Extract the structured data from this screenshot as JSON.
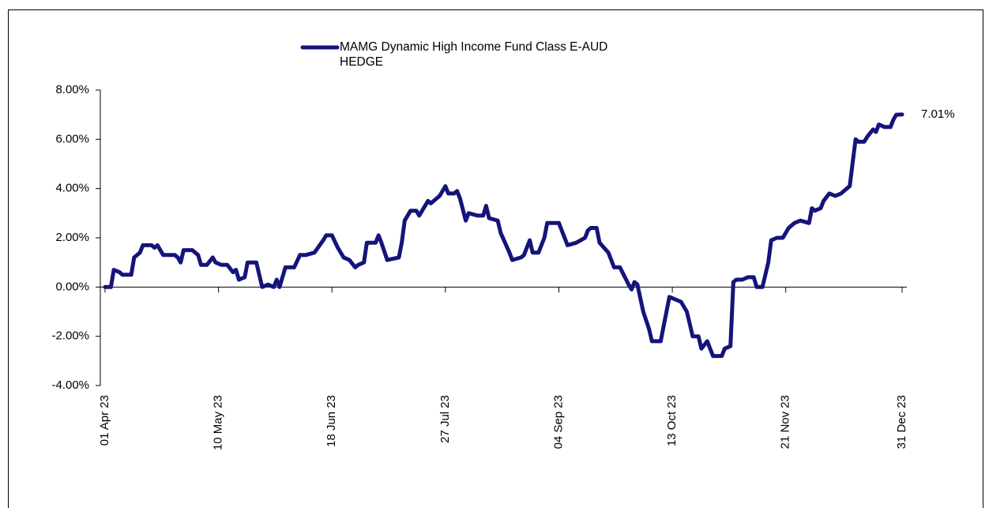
{
  "chart_data": {
    "type": "line",
    "x": [
      "01 Apr 23",
      "03 Apr 23",
      "04 Apr 23",
      "06 Apr 23",
      "07 Apr 23",
      "10 Apr 23",
      "11 Apr 23",
      "13 Apr 23",
      "14 Apr 23",
      "17 Apr 23",
      "18 Apr 23",
      "19 Apr 23",
      "21 Apr 23",
      "25 Apr 23",
      "26 Apr 23",
      "27 Apr 23",
      "28 Apr 23",
      "01 May 23",
      "03 May 23",
      "04 May 23",
      "06 May 23",
      "08 May 23",
      "09 May 23",
      "11 May 23",
      "13 May 23",
      "15 May 23",
      "16 May 23",
      "17 May 23",
      "19 May 23",
      "20 May 23",
      "23 May 23",
      "25 May 23",
      "27 May 23",
      "29 May 23",
      "30 May 23",
      "31 May 23",
      "02 Jun 23",
      "05 Jun 23",
      "07 Jun 23",
      "09 Jun 23",
      "12 Jun 23",
      "15 Jun 23",
      "16 Jun 23",
      "18 Jun 23",
      "20 Jun 23",
      "22 Jun 23",
      "24 Jun 23",
      "26 Jun 23",
      "27 Jun 23",
      "29 Jun 23",
      "30 Jun 23",
      "03 Jul 23",
      "04 Jul 23",
      "05 Jul 23",
      "07 Jul 23",
      "11 Jul 23",
      "12 Jul 23",
      "13 Jul 23",
      "15 Jul 23",
      "17 Jul 23",
      "18 Jul 23",
      "19 Jul 23",
      "21 Jul 23",
      "22 Jul 23",
      "24 Jul 23",
      "25 Jul 23",
      "27 Jul 23",
      "28 Jul 23",
      "30 Jul 23",
      "31 Jul 23",
      "01 Aug 23",
      "03 Aug 23",
      "04 Aug 23",
      "07 Aug 23",
      "09 Aug 23",
      "10 Aug 23",
      "11 Aug 23",
      "14 Aug 23",
      "15 Aug 23",
      "18 Aug 23",
      "19 Aug 23",
      "22 Aug 23",
      "23 Aug 23",
      "25 Aug 23",
      "26 Aug 23",
      "28 Aug 23",
      "30 Aug 23",
      "31 Aug 23",
      "04 Sep 23",
      "05 Sep 23",
      "07 Sep 23",
      "10 Sep 23",
      "13 Sep 23",
      "14 Sep 23",
      "15 Sep 23",
      "17 Sep 23",
      "18 Sep 23",
      "21 Sep 23",
      "23 Sep 23",
      "25 Sep 23",
      "28 Sep 23",
      "29 Sep 23",
      "30 Sep 23",
      "01 Oct 23",
      "03 Oct 23",
      "05 Oct 23",
      "06 Oct 23",
      "09 Oct 23",
      "11 Oct 23",
      "12 Oct 23",
      "14 Oct 23",
      "16 Oct 23",
      "18 Oct 23",
      "19 Oct 23",
      "20 Oct 23",
      "22 Oct 23",
      "23 Oct 23",
      "25 Oct 23",
      "26 Oct 23",
      "27 Oct 23",
      "30 Oct 23",
      "31 Oct 23",
      "02 Nov 23",
      "03 Nov 23",
      "04 Nov 23",
      "06 Nov 23",
      "08 Nov 23",
      "10 Nov 23",
      "11 Nov 23",
      "13 Nov 23",
      "15 Nov 23",
      "16 Nov 23",
      "18 Nov 23",
      "20 Nov 23",
      "22 Nov 23",
      "24 Nov 23",
      "26 Nov 23",
      "29 Nov 23",
      "30 Nov 23",
      "01 Dec 23",
      "03 Dec 23",
      "04 Dec 23",
      "06 Dec 23",
      "08 Dec 23",
      "10 Dec 23",
      "12 Dec 23",
      "13 Dec 23",
      "15 Dec 23",
      "16 Dec 23",
      "18 Dec 23",
      "19 Dec 23",
      "21 Dec 23",
      "22 Dec 23",
      "23 Dec 23",
      "25 Dec 23",
      "27 Dec 23",
      "28 Dec 23",
      "29 Dec 23",
      "31 Dec 23"
    ],
    "series": [
      {
        "name": "MAMG Dynamic High Income Fund Class E-AUD HEDGE",
        "color": "#14147a",
        "values": [
          0,
          0,
          0.7,
          0.6,
          0.5,
          0.5,
          1.2,
          1.4,
          1.7,
          1.7,
          1.6,
          1.7,
          1.3,
          1.3,
          1.2,
          1.0,
          1.5,
          1.5,
          1.3,
          0.9,
          0.9,
          1.2,
          1.0,
          0.9,
          0.9,
          0.6,
          0.7,
          0.3,
          0.4,
          1.0,
          1.0,
          0.0,
          0.1,
          0.0,
          0.3,
          0.0,
          0.8,
          0.8,
          1.3,
          1.3,
          1.4,
          1.9,
          2.1,
          2.1,
          1.6,
          1.2,
          1.1,
          0.8,
          0.9,
          1.0,
          1.8,
          1.8,
          2.1,
          1.8,
          1.1,
          1.2,
          1.8,
          2.7,
          3.1,
          3.1,
          2.9,
          3.1,
          3.5,
          3.4,
          3.6,
          3.7,
          4.1,
          3.8,
          3.8,
          3.9,
          3.6,
          2.7,
          3.0,
          2.9,
          2.9,
          3.3,
          2.8,
          2.7,
          2.2,
          1.4,
          1.1,
          1.2,
          1.3,
          1.9,
          1.4,
          1.4,
          2.0,
          2.6,
          2.6,
          2.3,
          1.7,
          1.8,
          2.0,
          2.3,
          2.4,
          2.4,
          1.8,
          1.4,
          0.8,
          0.8,
          0.1,
          -0.1,
          0.2,
          0.1,
          -1.0,
          -1.7,
          -2.2,
          -2.2,
          -1.0,
          -0.4,
          -0.5,
          -0.6,
          -1.0,
          -1.5,
          -2.0,
          -2.0,
          -2.5,
          -2.2,
          -2.5,
          -2.8,
          -2.8,
          -2.5,
          -2.4,
          0.2,
          0.3,
          0.3,
          0.4,
          0.4,
          0.0,
          0.0,
          1.0,
          1.9,
          2.0,
          2.0,
          2.4,
          2.6,
          2.7,
          2.6,
          3.2,
          3.1,
          3.2,
          3.5,
          3.8,
          3.7,
          3.8,
          4.0,
          4.1,
          6.0,
          5.9,
          5.9,
          6.1,
          6.4,
          6.3,
          6.6,
          6.5,
          6.5,
          6.8,
          7.0,
          7.01
        ]
      }
    ],
    "annotations": [
      {
        "text": "7.01%"
      }
    ],
    "xlim": [
      "01 Apr 23",
      "31 Dec 23"
    ],
    "xticks": [
      "01 Apr 23",
      "10 May 23",
      "18 Jun 23",
      "27 Jul 23",
      "04 Sep 23",
      "13 Oct 23",
      "21 Nov 23",
      "31 Dec 23"
    ],
    "ylim": [
      -4,
      8
    ],
    "yticks": [
      {
        "value": -4,
        "label": "-4.00%"
      },
      {
        "value": -2,
        "label": "-2.00%"
      },
      {
        "value": 0,
        "label": "0.00%"
      },
      {
        "value": 2,
        "label": "2.00%"
      },
      {
        "value": 4,
        "label": "4.00%"
      },
      {
        "value": 6,
        "label": "6.00%"
      },
      {
        "value": 8,
        "label": "8.00%"
      }
    ],
    "grid": false,
    "legend": "top"
  }
}
